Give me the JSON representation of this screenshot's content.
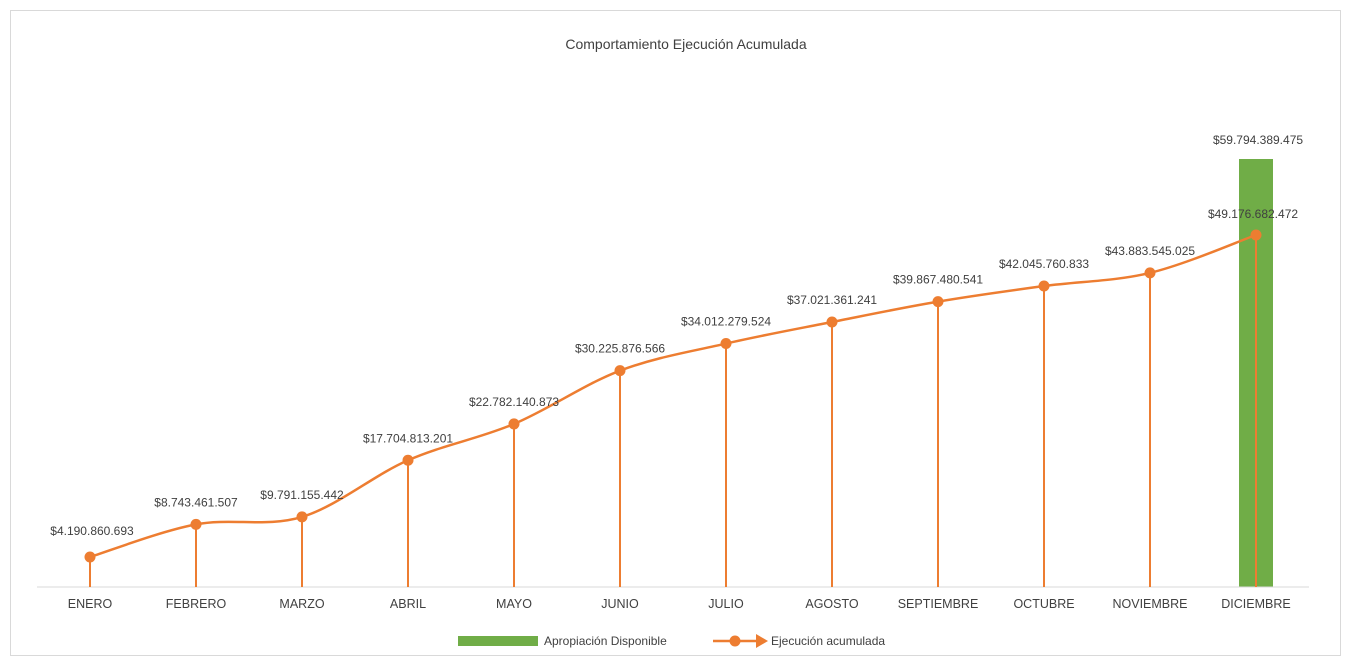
{
  "chart_data": {
    "type": "bar+line",
    "title": "Comportamiento Ejecución Acumulada",
    "categories": [
      "ENERO",
      "FEBRERO",
      "MARZO",
      "ABRIL",
      "MAYO",
      "JUNIO",
      "JULIO",
      "AGOSTO",
      "SEPTIEMBRE",
      "OCTUBRE",
      "NOVIEMBRE",
      "DICIEMBRE"
    ],
    "series": [
      {
        "name": "Apropiación Disponible",
        "type": "bar",
        "color": "#70ad47",
        "values": [
          null,
          null,
          null,
          null,
          null,
          null,
          null,
          null,
          null,
          null,
          null,
          59794389475
        ],
        "labels": [
          "",
          "",
          "",
          "",
          "",
          "",
          "",
          "",
          "",
          "",
          "",
          "$59.794.389.475"
        ]
      },
      {
        "name": "Ejecución acumulada",
        "type": "line",
        "color": "#ed7d31",
        "values": [
          4190860693,
          8743461507,
          9791155442,
          17704813201,
          22782140873,
          30225876566,
          34012279524,
          37021361241,
          39867480541,
          42045760833,
          43883545025,
          49176682472
        ],
        "labels": [
          "$4.190.860.693",
          "$8.743.461.507",
          "$9.791.155.442",
          "$17.704.813.201",
          "$22.782.140.873",
          "$30.225.876.566",
          "$34.012.279.524",
          "$37.021.361.241",
          "$39.867.480.541",
          "$42.045.760.833",
          "$43.883.545.025",
          "$49.176.682.472"
        ]
      }
    ],
    "ylim": [
      0,
      59794389475
    ],
    "grid": false,
    "legend_position": "bottom"
  }
}
